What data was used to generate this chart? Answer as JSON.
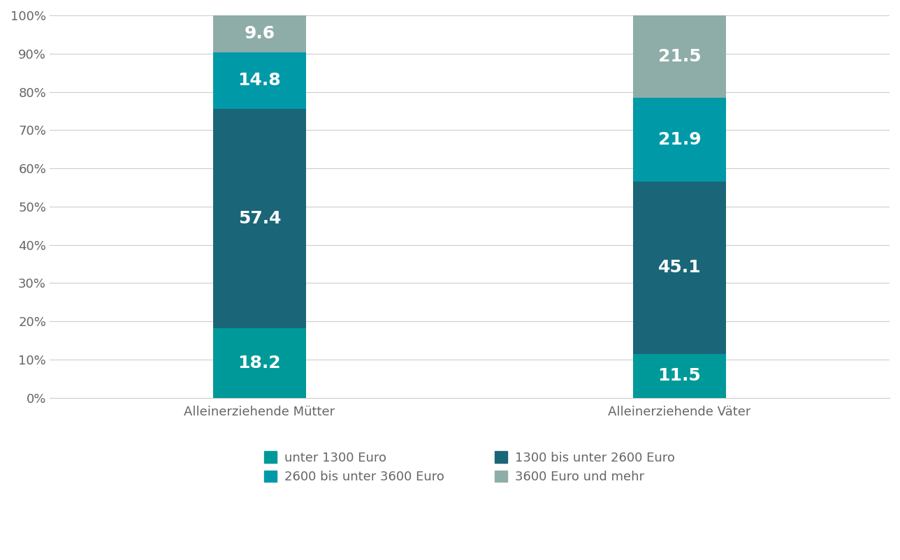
{
  "categories": [
    "Alleinerziehende Mütter",
    "Alleinerziehende Väter"
  ],
  "segments": [
    {
      "label": "unter 1300 Euro",
      "color": "#009999",
      "values": [
        18.2,
        11.5
      ]
    },
    {
      "label": "1300 bis unter 2600 Euro",
      "color": "#1a6678",
      "values": [
        57.4,
        45.1
      ]
    },
    {
      "label": "2600 bis unter 3600 Euro",
      "color": "#0099a8",
      "values": [
        14.8,
        21.9
      ]
    },
    {
      "label": "3600 Euro und mehr",
      "color": "#8fada8",
      "values": [
        9.6,
        21.5
      ]
    }
  ],
  "legend_order": [
    0,
    2,
    1,
    3
  ],
  "yticks": [
    0,
    10,
    20,
    30,
    40,
    50,
    60,
    70,
    80,
    90,
    100
  ],
  "yticklabels": [
    "0%",
    "10%",
    "20%",
    "30%",
    "40%",
    "50%",
    "60%",
    "70%",
    "80%",
    "90%",
    "100%"
  ],
  "bar_width": 0.22,
  "label_color": "#ffffff",
  "label_fontsize": 18,
  "tick_fontsize": 13,
  "legend_fontsize": 13,
  "axis_label_color": "#666666",
  "grid_color": "#cccccc",
  "background_color": "#ffffff"
}
